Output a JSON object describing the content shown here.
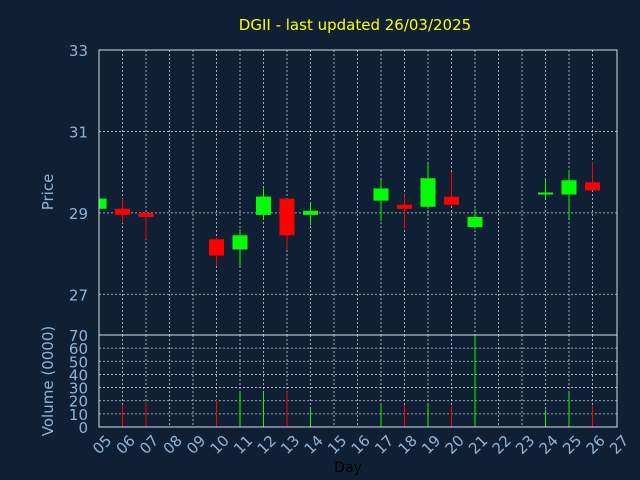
{
  "chart_data": {
    "type": "candlestick",
    "title": "DGII - last updated 26/03/2025",
    "xlabel": "Day",
    "ylabel": "Price",
    "volume_label": "Volume (0000)",
    "ylim": [
      26,
      33
    ],
    "yticks": [
      "33",
      "31",
      "29",
      "27"
    ],
    "ytick_values": [
      33,
      31,
      29,
      27
    ],
    "volume_ylim": [
      0,
      70
    ],
    "volume_ticks": [
      "70",
      "60",
      "50",
      "40",
      "30",
      "20",
      "10",
      "0"
    ],
    "volume_tick_values": [
      70,
      60,
      50,
      40,
      30,
      20,
      10,
      0
    ],
    "x_ticks": [
      "05",
      "06",
      "07",
      "08",
      "09",
      "10",
      "11",
      "12",
      "13",
      "14",
      "15",
      "16",
      "17",
      "18",
      "19",
      "20",
      "21",
      "22",
      "23",
      "24",
      "25",
      "26",
      "27"
    ],
    "colors": {
      "up": "#00ff00",
      "down": "#ff0000",
      "background": "#0f2035",
      "title": "#ffff00",
      "ticks": "#8fb4d8"
    },
    "candles": [
      {
        "day": "05",
        "open": 29.1,
        "close": 29.35,
        "high": 29.4,
        "low": 29.05,
        "volume": 5
      },
      {
        "day": "06",
        "open": 29.1,
        "close": 28.95,
        "high": 29.35,
        "low": 28.75,
        "volume": 17
      },
      {
        "day": "07",
        "open": 29.0,
        "close": 28.9,
        "high": 29.0,
        "low": 28.35,
        "volume": 19
      },
      {
        "day": "10",
        "open": 28.35,
        "close": 27.95,
        "high": 28.4,
        "low": 27.7,
        "volume": 21
      },
      {
        "day": "11",
        "open": 28.1,
        "close": 28.45,
        "high": 28.6,
        "low": 27.7,
        "volume": 26
      },
      {
        "day": "12",
        "open": 28.95,
        "close": 29.4,
        "high": 29.6,
        "low": 28.85,
        "volume": 26
      },
      {
        "day": "13",
        "open": 29.35,
        "close": 28.45,
        "high": 29.35,
        "low": 28.1,
        "volume": 27
      },
      {
        "day": "14",
        "open": 28.95,
        "close": 29.05,
        "high": 29.25,
        "low": 28.7,
        "volume": 14
      },
      {
        "day": "17",
        "open": 29.3,
        "close": 29.6,
        "high": 29.8,
        "low": 28.8,
        "volume": 17
      },
      {
        "day": "18",
        "open": 29.2,
        "close": 29.1,
        "high": 29.45,
        "low": 28.6,
        "volume": 17
      },
      {
        "day": "19",
        "open": 29.15,
        "close": 29.85,
        "high": 30.2,
        "low": 29.1,
        "volume": 17
      },
      {
        "day": "20",
        "open": 29.4,
        "close": 29.2,
        "high": 30.0,
        "low": 29.2,
        "volume": 16
      },
      {
        "day": "21",
        "open": 28.65,
        "close": 28.9,
        "high": 29.1,
        "low": 28.6,
        "volume": 69
      },
      {
        "day": "24",
        "open": 29.5,
        "close": 29.5,
        "high": 29.85,
        "low": 29.35,
        "volume": 13
      },
      {
        "day": "25",
        "open": 29.45,
        "close": 29.8,
        "high": 30.05,
        "low": 28.85,
        "volume": 26
      },
      {
        "day": "26",
        "open": 29.75,
        "close": 29.55,
        "high": 30.25,
        "low": 29.55,
        "volume": 16
      }
    ]
  }
}
